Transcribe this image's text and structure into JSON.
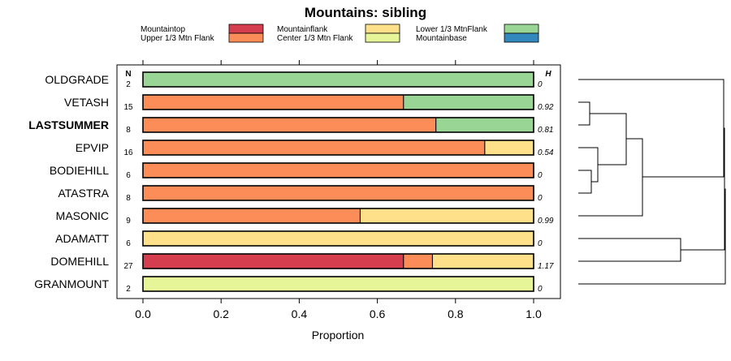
{
  "chart_data": {
    "type": "bar",
    "orientation": "horizontal",
    "stacked": true,
    "title": "Mountains: sibling",
    "xlabel": "Proportion",
    "ylabel": "",
    "xlim": [
      0,
      1
    ],
    "xticks": [
      "0.0",
      "0.2",
      "0.4",
      "0.6",
      "0.8",
      "1.0"
    ],
    "n_header": "N",
    "h_header": "H",
    "highlight_category": "LASTSUMMER",
    "legend": [
      {
        "name": "Mountaintop",
        "color": "#d53e4f"
      },
      {
        "name": "Upper 1/3 Mtn Flank",
        "color": "#fc8d59"
      },
      {
        "name": "Mountainflank",
        "color": "#fee08b"
      },
      {
        "name": "Center 1/3 Mtn Flank",
        "color": "#e6f598"
      },
      {
        "name": "Lower 1/3 MtnFlank",
        "color": "#99d594"
      },
      {
        "name": "Mountainbase",
        "color": "#3288bd"
      }
    ],
    "rows": [
      {
        "label": "OLDGRADE",
        "n": "2",
        "h": "0",
        "segments": [
          0,
          0,
          0,
          0,
          1,
          0
        ]
      },
      {
        "label": "VETASH",
        "n": "15",
        "h": "0.92",
        "segments": [
          0,
          0.667,
          0,
          0,
          0.333,
          0
        ]
      },
      {
        "label": "LASTSUMMER",
        "n": "8",
        "h": "0.81",
        "segments": [
          0,
          0.75,
          0,
          0,
          0.25,
          0
        ]
      },
      {
        "label": "EPVIP",
        "n": "16",
        "h": "0.54",
        "segments": [
          0,
          0.875,
          0.125,
          0,
          0,
          0
        ]
      },
      {
        "label": "BODIEHILL",
        "n": "6",
        "h": "0",
        "segments": [
          0,
          1,
          0,
          0,
          0,
          0
        ]
      },
      {
        "label": "ATASTRA",
        "n": "8",
        "h": "0",
        "segments": [
          0,
          1,
          0,
          0,
          0,
          0
        ]
      },
      {
        "label": "MASONIC",
        "n": "9",
        "h": "0.99",
        "segments": [
          0,
          0.556,
          0.444,
          0,
          0,
          0
        ]
      },
      {
        "label": "ADAMATT",
        "n": "6",
        "h": "0",
        "segments": [
          0,
          0,
          1,
          0,
          0,
          0
        ]
      },
      {
        "label": "DOMEHILL",
        "n": "27",
        "h": "1.17",
        "segments": [
          0.667,
          0.074,
          0.259,
          0,
          0,
          0
        ]
      },
      {
        "label": "GRANMOUNT",
        "n": "2",
        "h": "0",
        "segments": [
          0,
          0,
          0,
          1,
          0,
          0
        ]
      }
    ],
    "dendrogram": "clustering tree of rows"
  }
}
